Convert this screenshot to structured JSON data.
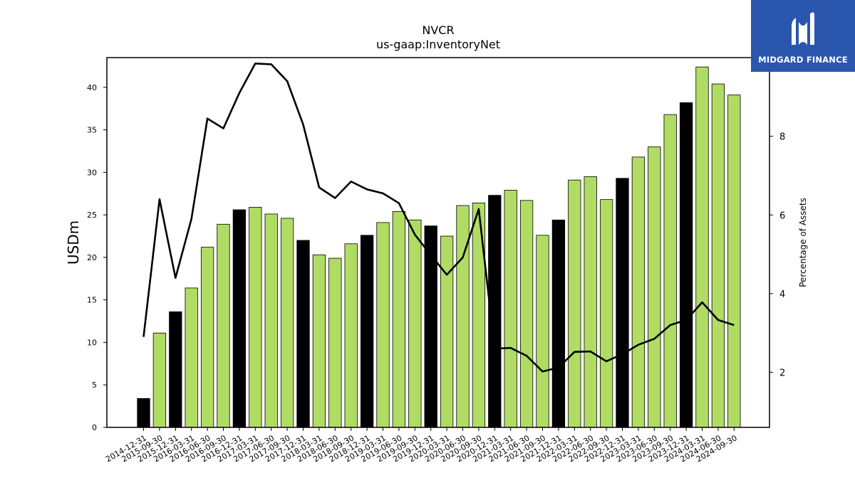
{
  "logo": {
    "text": "MIDGARD FINANCE",
    "colors": {
      "background": "#2a57ad",
      "mark": "#ffffff"
    },
    "icon": "midgard-logo-mark"
  },
  "chart_data": {
    "type": "bar",
    "title": "NVCR",
    "subtitle": "us-gaap:InventoryNet",
    "ylabel": "USDm",
    "y2label": "Percentage of Assets",
    "ylim": [
      0,
      43.5
    ],
    "y2lim": [
      0.6,
      10.0
    ],
    "yticks": [
      0,
      5,
      10,
      15,
      20,
      25,
      30,
      35,
      40
    ],
    "y2ticks": [
      2,
      4,
      6,
      8
    ],
    "grid": false,
    "categories": [
      "2014-12-31",
      "2015-09-30",
      "2015-12-31",
      "2016-03-31",
      "2016-06-30",
      "2016-09-30",
      "2016-12-31",
      "2017-03-31",
      "2017-06-30",
      "2017-09-30",
      "2017-12-31",
      "2018-03-31",
      "2018-06-30",
      "2018-09-30",
      "2018-12-31",
      "2019-03-31",
      "2019-06-30",
      "2019-09-30",
      "2019-12-31",
      "2020-03-31",
      "2020-06-30",
      "2020-09-30",
      "2020-12-31",
      "2021-03-31",
      "2021-06-30",
      "2021-09-30",
      "2021-12-31",
      "2022-03-31",
      "2022-06-30",
      "2022-09-30",
      "2022-12-31",
      "2023-03-31",
      "2023-06-30",
      "2023-09-30",
      "2023-12-31",
      "2024-03-31",
      "2024-06-30",
      "2024-09-30"
    ],
    "series": [
      {
        "type": "bar",
        "axis": "left",
        "values": [
          3.4,
          11.1,
          13.6,
          16.4,
          21.2,
          23.9,
          25.6,
          25.9,
          25.1,
          24.6,
          22.0,
          20.3,
          19.9,
          21.6,
          22.6,
          24.1,
          25.4,
          24.4,
          23.7,
          22.5,
          26.1,
          26.4,
          27.3,
          27.9,
          26.7,
          22.6,
          24.4,
          29.1,
          29.5,
          26.8,
          29.3,
          31.8,
          33.0,
          36.8,
          38.2,
          42.4,
          40.4,
          39.1
        ],
        "colors": {
          "annual": "#000000",
          "quarterly": "#b0dc64",
          "edge": "#000000"
        },
        "annual_mask": [
          1,
          0,
          1,
          0,
          0,
          0,
          1,
          0,
          0,
          0,
          1,
          0,
          0,
          0,
          1,
          0,
          0,
          0,
          1,
          0,
          0,
          0,
          1,
          0,
          0,
          0,
          1,
          0,
          0,
          0,
          1,
          0,
          0,
          0,
          1,
          0,
          0,
          0
        ]
      },
      {
        "type": "line",
        "axis": "right",
        "color": "#000000",
        "values": [
          2.9,
          6.4,
          4.4,
          5.9,
          8.45,
          8.2,
          9.1,
          9.85,
          9.83,
          9.4,
          8.3,
          6.7,
          6.43,
          6.85,
          6.65,
          6.55,
          6.3,
          5.5,
          4.98,
          4.48,
          4.92,
          6.15,
          2.6,
          2.62,
          2.42,
          2.02,
          2.12,
          2.52,
          2.53,
          2.28,
          2.46,
          2.7,
          2.85,
          3.2,
          3.33,
          3.78,
          3.33,
          3.2
        ]
      }
    ]
  }
}
